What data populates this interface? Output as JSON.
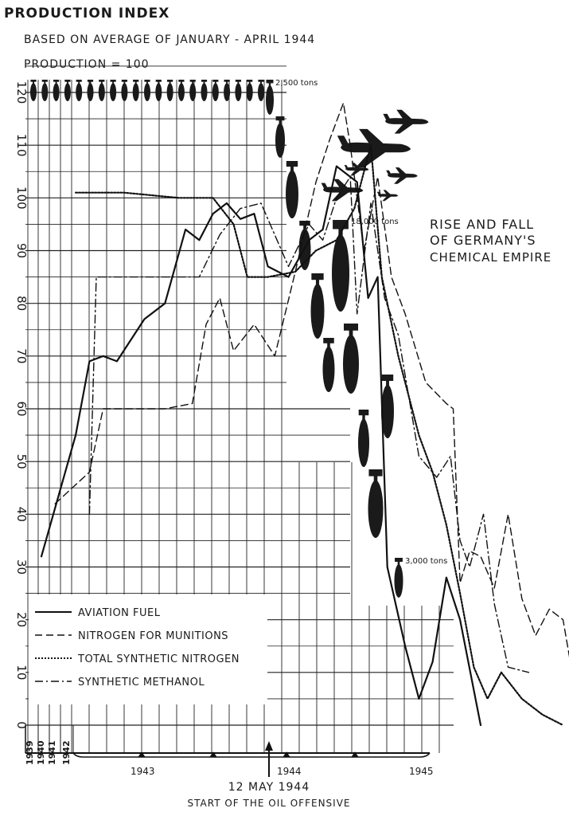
{
  "header": {
    "title": "PRODUCTION INDEX",
    "subtitle_1": "BASED ON AVERAGE OF JANUARY - APRIL 1944",
    "subtitle_2": "PRODUCTION = 100"
  },
  "side_title": {
    "line1": "RISE AND FALL",
    "line2": "OF GERMANY'S",
    "line3": "CHEMICAL EMPIRE"
  },
  "bomb_labels": {
    "first": "2,500 tons",
    "peak": "18,000 tons",
    "last": "3,000 tons"
  },
  "annotation": {
    "date": "12 MAY 1944",
    "text": "START OF THE OIL OFFENSIVE"
  },
  "x_labels": {
    "y1939": "1939",
    "y1940": "1940",
    "y1941": "1941",
    "y1942": "1942",
    "y1943": "1943",
    "y1944": "1944",
    "y1945": "1945"
  },
  "chart_data": {
    "type": "line",
    "title": "PRODUCTION INDEX",
    "subtitle": "BASED ON AVERAGE OF JANUARY - APRIL 1944 PRODUCTION = 100",
    "xlabel": "",
    "ylabel": "",
    "ylim": [
      0,
      120
    ],
    "yticks": [
      0,
      10,
      20,
      30,
      40,
      50,
      60,
      70,
      80,
      90,
      100,
      110,
      120
    ],
    "grid": true,
    "legend_position": "bottom-left",
    "series": [
      {
        "name": "AVIATION FUEL",
        "style": "solid",
        "points": [
          [
            1942.0,
            32
          ],
          [
            1942.25,
            55
          ],
          [
            1942.35,
            69
          ],
          [
            1942.45,
            70
          ],
          [
            1942.55,
            69
          ],
          [
            1942.75,
            77
          ],
          [
            1942.9,
            80
          ],
          [
            1943.05,
            94
          ],
          [
            1943.15,
            92
          ],
          [
            1943.25,
            97
          ],
          [
            1943.35,
            99
          ],
          [
            1943.45,
            96
          ],
          [
            1943.55,
            97
          ],
          [
            1943.65,
            87
          ],
          [
            1943.8,
            85
          ],
          [
            1943.95,
            92
          ],
          [
            1944.05,
            94
          ],
          [
            1944.15,
            106
          ],
          [
            1944.3,
            103
          ],
          [
            1944.38,
            81
          ],
          [
            1944.45,
            85
          ],
          [
            1944.52,
            30
          ],
          [
            1944.65,
            15
          ],
          [
            1944.75,
            5
          ],
          [
            1944.85,
            12
          ],
          [
            1944.95,
            28
          ],
          [
            1945.05,
            20
          ],
          [
            1945.2,
            0
          ]
        ]
      },
      {
        "name": "NITROGEN FOR MUNITIONS",
        "style": "dashed",
        "points": [
          [
            1942.1,
            42
          ],
          [
            1942.35,
            48
          ],
          [
            1942.45,
            60
          ],
          [
            1942.6,
            60
          ],
          [
            1942.9,
            60
          ],
          [
            1943.1,
            61
          ],
          [
            1943.2,
            76
          ],
          [
            1943.3,
            81
          ],
          [
            1943.4,
            71
          ],
          [
            1943.55,
            76
          ],
          [
            1943.7,
            70
          ],
          [
            1943.85,
            86
          ],
          [
            1944.0,
            103
          ],
          [
            1944.1,
            111
          ],
          [
            1944.2,
            118
          ],
          [
            1944.25,
            110
          ],
          [
            1944.35,
            90
          ],
          [
            1944.45,
            104
          ],
          [
            1944.55,
            85
          ],
          [
            1944.65,
            78
          ],
          [
            1944.8,
            65
          ],
          [
            1944.95,
            61
          ],
          [
            1945.0,
            60
          ],
          [
            1945.05,
            27
          ],
          [
            1945.12,
            33
          ],
          [
            1945.2,
            32
          ],
          [
            1945.3,
            26
          ],
          [
            1945.4,
            40
          ],
          [
            1945.5,
            24
          ],
          [
            1945.6,
            17
          ],
          [
            1945.7,
            22
          ],
          [
            1945.8,
            20
          ],
          [
            1945.88,
            8
          ]
        ]
      },
      {
        "name": "TOTAL SYNTHETIC NITROGEN",
        "style": "dotted",
        "points": [
          [
            1942.25,
            101
          ],
          [
            1942.6,
            101
          ],
          [
            1943.0,
            100
          ],
          [
            1943.25,
            100
          ],
          [
            1943.4,
            95
          ],
          [
            1943.5,
            85
          ],
          [
            1943.65,
            85
          ],
          [
            1943.85,
            86
          ],
          [
            1944.0,
            90
          ],
          [
            1944.15,
            92
          ],
          [
            1944.28,
            98
          ],
          [
            1944.4,
            110
          ],
          [
            1944.48,
            85
          ],
          [
            1944.6,
            70
          ],
          [
            1944.75,
            55
          ],
          [
            1944.85,
            48
          ],
          [
            1944.95,
            38
          ],
          [
            1945.05,
            25
          ],
          [
            1945.15,
            11
          ],
          [
            1945.25,
            5
          ],
          [
            1945.35,
            10
          ],
          [
            1945.5,
            5
          ],
          [
            1945.65,
            2
          ],
          [
            1945.8,
            0
          ]
        ]
      },
      {
        "name": "SYNTHETIC METHANOL",
        "style": "dashdot",
        "points": [
          [
            1942.35,
            40
          ],
          [
            1942.4,
            85
          ],
          [
            1942.6,
            85
          ],
          [
            1942.9,
            85
          ],
          [
            1943.15,
            85
          ],
          [
            1943.3,
            93
          ],
          [
            1943.45,
            98
          ],
          [
            1943.6,
            99
          ],
          [
            1943.8,
            87
          ],
          [
            1943.95,
            95
          ],
          [
            1944.05,
            92
          ],
          [
            1944.15,
            100
          ],
          [
            1944.25,
            104
          ],
          [
            1944.3,
            78
          ],
          [
            1944.4,
            99
          ],
          [
            1944.5,
            81
          ],
          [
            1944.6,
            74
          ],
          [
            1944.75,
            51
          ],
          [
            1944.88,
            47
          ],
          [
            1944.98,
            51
          ],
          [
            1945.05,
            35
          ],
          [
            1945.12,
            30
          ],
          [
            1945.22,
            40
          ],
          [
            1945.3,
            23
          ],
          [
            1945.4,
            11
          ],
          [
            1945.55,
            10
          ]
        ]
      }
    ]
  }
}
